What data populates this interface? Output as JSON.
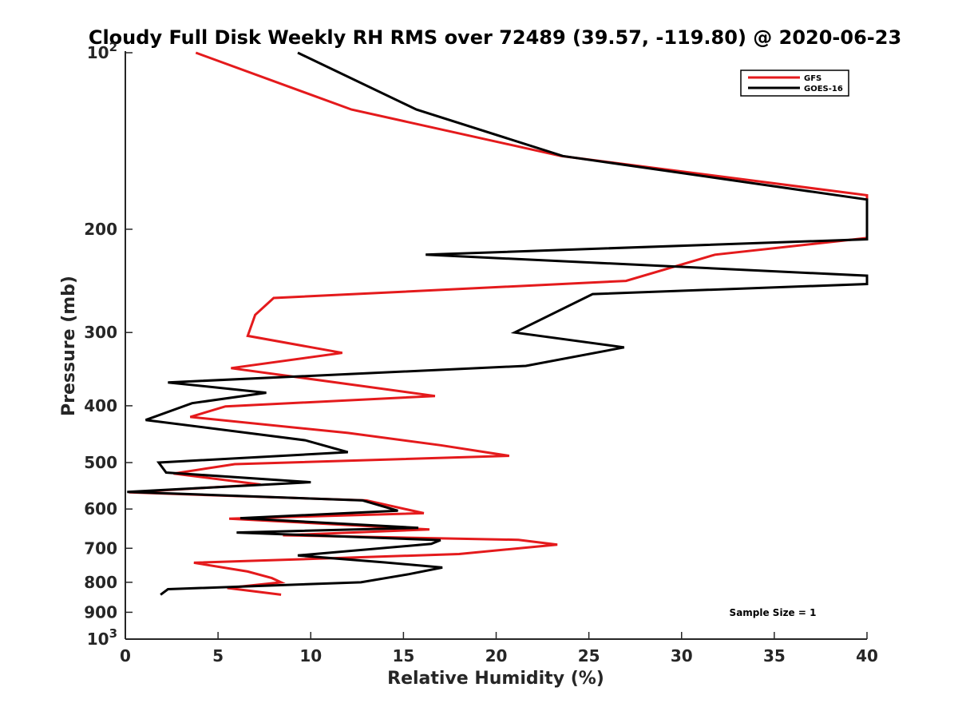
{
  "chart_data": {
    "type": "line",
    "title": "Cloudy Full Disk Weekly RH RMS over 72489 (39.57, -119.80) @ 2020-06-23",
    "xlabel": "Relative Humidity (%)",
    "ylabel": "Pressure (mb)",
    "xlim": [
      0,
      40
    ],
    "ylim": [
      100,
      1000
    ],
    "yscale": "log",
    "y_reversed": true,
    "x_ticks": [
      "0",
      "5",
      "10",
      "15",
      "20",
      "25",
      "30",
      "35",
      "40"
    ],
    "y_ticks": [
      {
        "value": 100,
        "label": "10",
        "sup": "2"
      },
      {
        "value": 200,
        "label": "200",
        "sup": ""
      },
      {
        "value": 300,
        "label": "300",
        "sup": ""
      },
      {
        "value": 400,
        "label": "400",
        "sup": ""
      },
      {
        "value": 500,
        "label": "500",
        "sup": ""
      },
      {
        "value": 600,
        "label": "600",
        "sup": ""
      },
      {
        "value": 700,
        "label": "700",
        "sup": ""
      },
      {
        "value": 800,
        "label": "800",
        "sup": ""
      },
      {
        "value": 900,
        "label": "900",
        "sup": ""
      },
      {
        "value": 1000,
        "label": "10",
        "sup": "3"
      }
    ],
    "grid": false,
    "legend_position": "top-right",
    "annotation": "Sample Size = 1",
    "series": [
      {
        "name": "GFS",
        "color": "#e41a1c",
        "points": [
          [
            3.8,
            100
          ],
          [
            12.2,
            125
          ],
          [
            23.5,
            150
          ],
          [
            40.0,
            175
          ],
          [
            40.0,
            207
          ],
          [
            31.8,
            221
          ],
          [
            27.0,
            245
          ],
          [
            8.0,
            262
          ],
          [
            7.0,
            280
          ],
          [
            6.6,
            304
          ],
          [
            11.7,
            325
          ],
          [
            5.7,
            345
          ],
          [
            16.7,
            385
          ],
          [
            5.4,
            401
          ],
          [
            3.5,
            418
          ],
          [
            12.0,
            445
          ],
          [
            17.0,
            467
          ],
          [
            20.7,
            487
          ],
          [
            5.9,
            503
          ],
          [
            2.6,
            522
          ],
          [
            7.3,
            545
          ],
          [
            0.2,
            562
          ],
          [
            13.0,
            580
          ],
          [
            16.1,
            610
          ],
          [
            5.6,
            623
          ],
          [
            16.4,
            650
          ],
          [
            8.5,
            665
          ],
          [
            21.2,
            677
          ],
          [
            23.3,
            690
          ],
          [
            18.0,
            716
          ],
          [
            3.7,
            741
          ],
          [
            6.6,
            767
          ],
          [
            7.9,
            787
          ],
          [
            8.4,
            800
          ],
          [
            5.5,
            818
          ],
          [
            8.4,
            840
          ]
        ]
      },
      {
        "name": "GOES-16",
        "color": "#000000",
        "points": [
          [
            9.3,
            100
          ],
          [
            15.7,
            125
          ],
          [
            23.6,
            150
          ],
          [
            40.0,
            178
          ],
          [
            40.0,
            208
          ],
          [
            16.2,
            221
          ],
          [
            40.0,
            240
          ],
          [
            40.0,
            248
          ],
          [
            25.2,
            258
          ],
          [
            21.0,
            300
          ],
          [
            26.9,
            318
          ],
          [
            21.6,
            342
          ],
          [
            2.3,
            365
          ],
          [
            7.6,
            380
          ],
          [
            3.6,
            396
          ],
          [
            1.1,
            423
          ],
          [
            9.7,
            458
          ],
          [
            12.0,
            480
          ],
          [
            1.8,
            500
          ],
          [
            2.2,
            520
          ],
          [
            10.0,
            540
          ],
          [
            0.1,
            561
          ],
          [
            12.8,
            580
          ],
          [
            14.7,
            604
          ],
          [
            6.2,
            622
          ],
          [
            15.8,
            646
          ],
          [
            6.0,
            658
          ],
          [
            17.0,
            678
          ],
          [
            16.5,
            688
          ],
          [
            9.3,
            720
          ],
          [
            14.0,
            740
          ],
          [
            17.1,
            755
          ],
          [
            15.3,
            775
          ],
          [
            12.7,
            800
          ],
          [
            2.3,
            822
          ],
          [
            1.9,
            840
          ]
        ]
      }
    ]
  }
}
